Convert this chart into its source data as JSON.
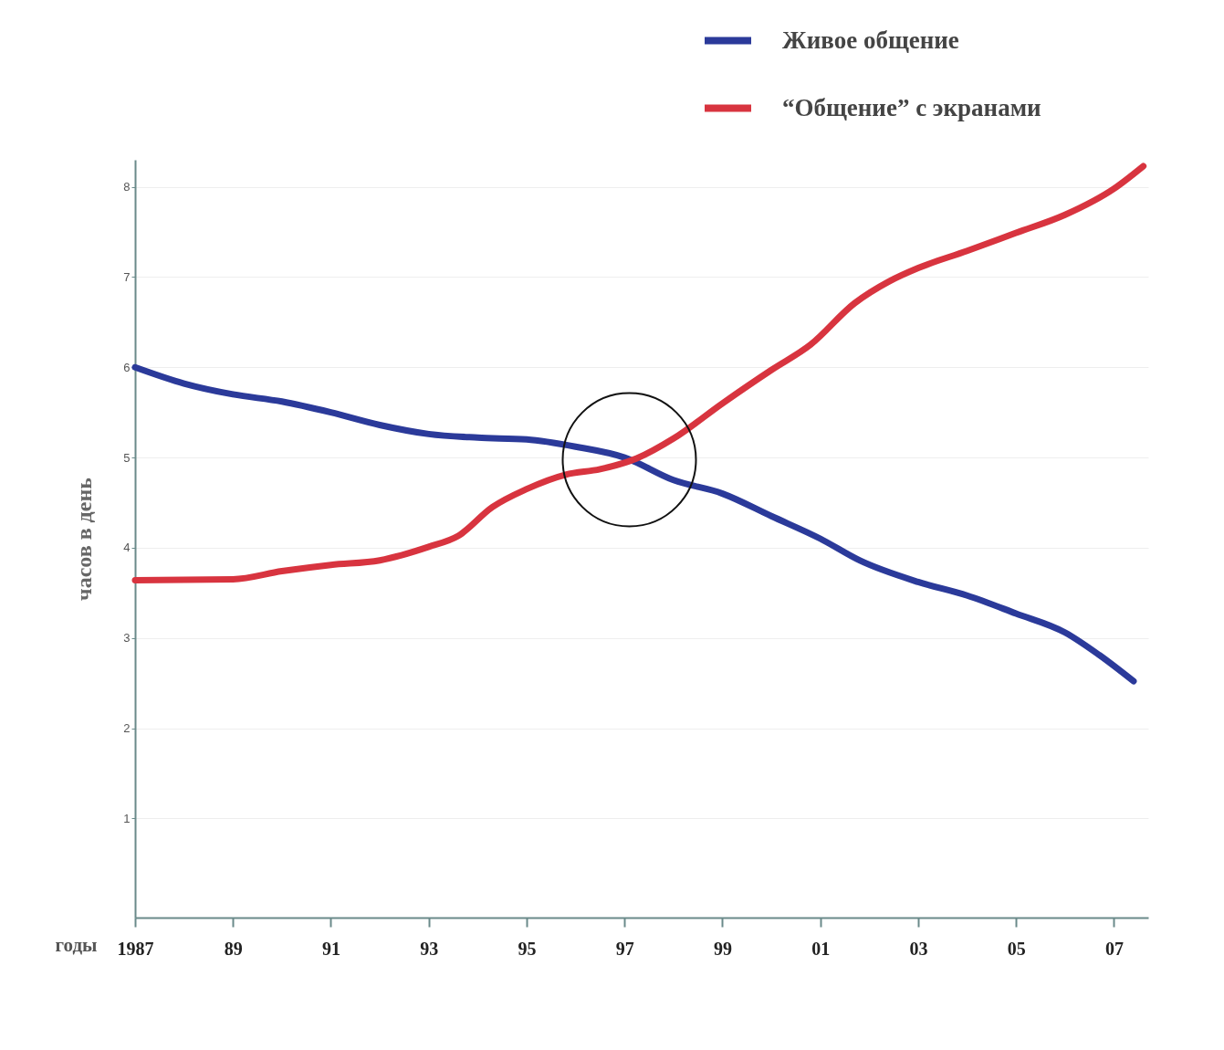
{
  "chart_data": {
    "type": "line",
    "xlabel": "годы",
    "ylabel": "часов в день",
    "xlim": [
      1987,
      2007.7
    ],
    "ylim": [
      -0.1,
      8.3
    ],
    "xticks": [
      {
        "value": 1987,
        "label": "1987"
      },
      {
        "value": 1989,
        "label": "89"
      },
      {
        "value": 1991,
        "label": "91"
      },
      {
        "value": 1993,
        "label": "93"
      },
      {
        "value": 1995,
        "label": "95"
      },
      {
        "value": 1997,
        "label": "97"
      },
      {
        "value": 1999,
        "label": "99"
      },
      {
        "value": 2001,
        "label": "01"
      },
      {
        "value": 2003,
        "label": "03"
      },
      {
        "value": 2005,
        "label": "05"
      },
      {
        "value": 2007,
        "label": "07"
      }
    ],
    "yticks": [
      1,
      2,
      3,
      4,
      5,
      6,
      7,
      8
    ],
    "grid": "y",
    "legend": "top right",
    "line_style": "solid",
    "marker": "none",
    "series": [
      {
        "name": "Живое общение",
        "color": "#2b3a9a",
        "x": [
          1987,
          1988,
          1989,
          1990,
          1991,
          1992,
          1993,
          1994,
          1995,
          1996,
          1997,
          1998,
          1999,
          2000,
          2001,
          2001.8,
          2003,
          2004,
          2005,
          2006,
          2006.7,
          2007.4
        ],
        "values": [
          6.0,
          5.82,
          5.7,
          5.62,
          5.5,
          5.36,
          5.26,
          5.22,
          5.2,
          5.12,
          5.0,
          4.75,
          4.6,
          4.35,
          4.1,
          3.86,
          3.62,
          3.47,
          3.27,
          3.06,
          2.81,
          2.52
        ]
      },
      {
        "name": "“Общение” с экранами",
        "color": "#d8343f",
        "x": [
          1987,
          1989,
          1990,
          1991,
          1992,
          1993,
          1993.6,
          1994.3,
          1995,
          1995.8,
          1996.5,
          1997.25,
          1998,
          1999,
          2000,
          2000.8,
          2001.7,
          2002.4,
          2003,
          2004,
          2005,
          2006,
          2007,
          2007.6
        ],
        "values": [
          3.64,
          3.65,
          3.74,
          3.81,
          3.86,
          4.01,
          4.13,
          4.45,
          4.65,
          4.81,
          4.87,
          4.99,
          5.21,
          5.6,
          5.97,
          6.25,
          6.71,
          6.95,
          7.1,
          7.29,
          7.49,
          7.69,
          7.98,
          8.23
        ]
      }
    ]
  }
}
